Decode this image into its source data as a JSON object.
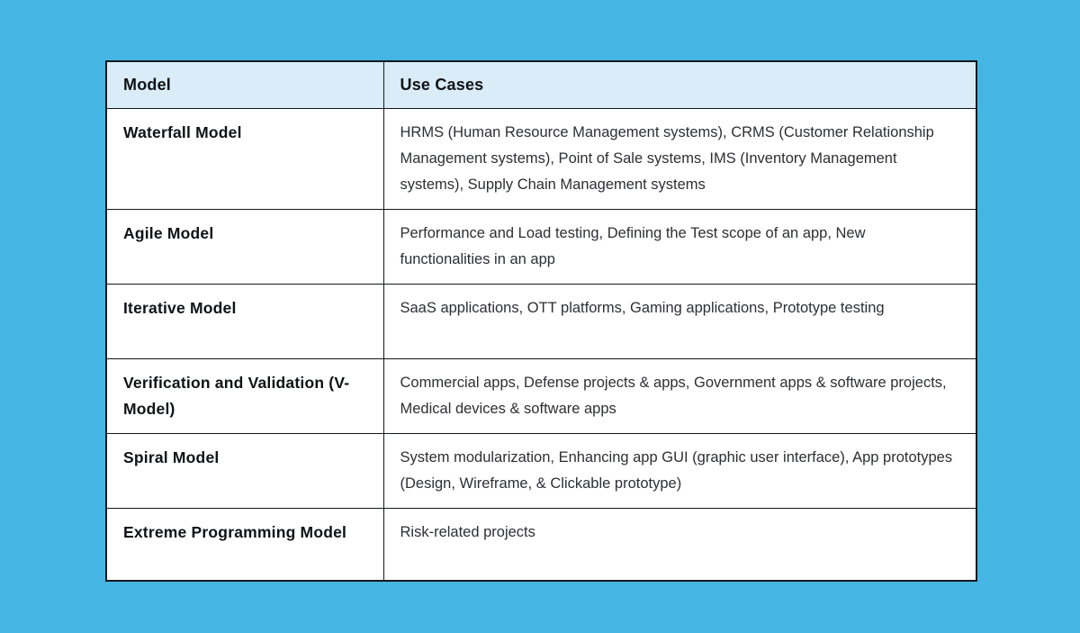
{
  "colors": {
    "page_background": "#45b6e3",
    "header_background": "#d9ecf7",
    "table_background": "#ffffff",
    "border": "#14181f",
    "heading_text": "#101216",
    "body_text": "#2e2f33"
  },
  "table": {
    "columns": [
      "Model",
      "Use Cases"
    ],
    "rows": [
      {
        "model": "Waterfall Model",
        "use_cases": "HRMS (Human Resource Management systems), CRMS (Customer Relationship Management systems), Point of Sale systems, IMS (Inventory Management systems), Supply Chain Management systems"
      },
      {
        "model": "Agile Model",
        "use_cases": "Performance and Load testing, Defining the Test scope of an app, New functionalities in an app"
      },
      {
        "model": "Iterative Model",
        "use_cases": "SaaS applications, OTT platforms, Gaming applications, Prototype testing"
      },
      {
        "model": "Verification and Validation (V-Model)",
        "use_cases": "Commercial apps, Defense projects & apps, Government apps & software projects, Medical devices & software apps"
      },
      {
        "model": "Spiral Model",
        "use_cases": "System modularization, Enhancing app GUI (graphic user interface), App prototypes (Design, Wireframe, & Clickable prototype)"
      },
      {
        "model": "Extreme Programming Model",
        "use_cases": "Risk-related projects"
      }
    ]
  }
}
